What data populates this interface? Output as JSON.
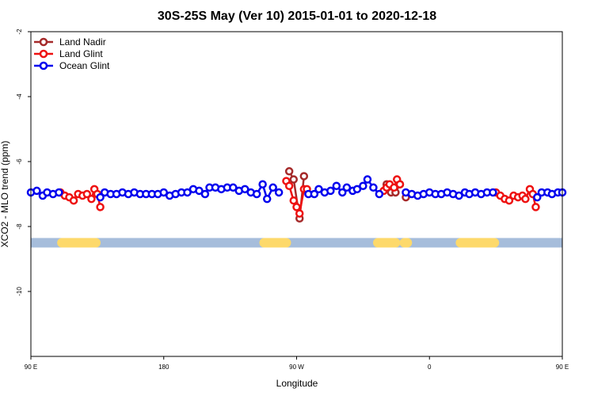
{
  "chart_data": {
    "type": "line",
    "title": "30S-25S May (Ver 10)   2015-01-01 to 2020-12-18",
    "xlabel": "Longitude",
    "ylabel": "XCO2 - MLO trend (ppm)",
    "xlim": [
      90,
      450
    ],
    "ylim": [
      -12,
      -2
    ],
    "x_ticks": [
      {
        "value": 90,
        "label": "90 E"
      },
      {
        "value": 180,
        "label": "180"
      },
      {
        "value": 270,
        "label": "90 W"
      },
      {
        "value": 360,
        "label": "0"
      },
      {
        "value": 450,
        "label": "90 E"
      },
      {
        "value": 540,
        "label": "180"
      }
    ],
    "y_ticks": [
      {
        "value": -2,
        "label": "-2"
      },
      {
        "value": -4,
        "label": "-4"
      },
      {
        "value": -6,
        "label": "-6"
      },
      {
        "value": -8,
        "label": "-8"
      },
      {
        "value": -10,
        "label": "-10"
      }
    ],
    "legend_position": "top-left",
    "land_ocean_bar": {
      "y": -8.5,
      "ocean_color": "#a6bddb",
      "land_color": "#fdd96b",
      "land_segments": [
        [
          111,
          134
        ],
        [
          248,
          263
        ],
        [
          325,
          337
        ],
        [
          343,
          345
        ],
        [
          381,
          404
        ]
      ]
    },
    "series": [
      {
        "name": "Land Nadir",
        "color": "#a52a2a",
        "segments": [
          [
            [
              265,
              -6.3
            ],
            [
              268,
              -6.55
            ],
            [
              272,
              -7.75
            ],
            [
              275,
              -6.45
            ]
          ],
          [
            [
              331,
              -6.7
            ],
            [
              334,
              -6.95
            ],
            [
              337,
              -6.95
            ],
            [
              340,
              -6.7
            ]
          ],
          [
            [
              344,
              -7.1
            ]
          ]
        ]
      },
      {
        "name": "Land Glint",
        "color": "#ee1111",
        "segments": [
          [
            [
              110,
              -6.95
            ],
            [
              113,
              -7.05
            ],
            [
              116,
              -7.1
            ],
            [
              119,
              -7.2
            ],
            [
              122,
              -7.0
            ],
            [
              125,
              -7.05
            ],
            [
              128,
              -7.0
            ],
            [
              131,
              -7.15
            ],
            [
              133,
              -6.85
            ],
            [
              135,
              -7.0
            ],
            [
              137,
              -7.4
            ]
          ],
          [
            [
              263,
              -6.6
            ],
            [
              265,
              -6.75
            ],
            [
              268,
              -7.2
            ],
            [
              270,
              -7.4
            ],
            [
              272,
              -7.6
            ],
            [
              275,
              -6.85
            ],
            [
              277,
              -6.85
            ]
          ],
          [
            [
              329,
              -6.9
            ],
            [
              331,
              -6.8
            ],
            [
              333,
              -6.7
            ],
            [
              336,
              -6.8
            ],
            [
              338,
              -6.55
            ],
            [
              340,
              -6.7
            ]
          ],
          [
            [
              405,
              -6.95
            ],
            [
              408,
              -7.05
            ],
            [
              411,
              -7.15
            ],
            [
              414,
              -7.2
            ],
            [
              417,
              -7.05
            ],
            [
              420,
              -7.1
            ],
            [
              423,
              -7.05
            ],
            [
              425,
              -7.15
            ],
            [
              428,
              -6.85
            ],
            [
              430,
              -7.0
            ],
            [
              432,
              -7.4
            ]
          ]
        ]
      },
      {
        "name": "Ocean Glint",
        "color": "#0000ee",
        "segments": [
          [
            [
              90,
              -6.95
            ],
            [
              94,
              -6.9
            ],
            [
              98,
              -7.05
            ],
            [
              101,
              -6.95
            ],
            [
              105,
              -7.0
            ],
            [
              109,
              -6.95
            ]
          ],
          [
            [
              137,
              -7.1
            ],
            [
              140,
              -6.95
            ],
            [
              144,
              -7.0
            ],
            [
              148,
              -7.0
            ],
            [
              152,
              -6.95
            ],
            [
              156,
              -7.0
            ],
            [
              160,
              -6.95
            ],
            [
              164,
              -7.0
            ],
            [
              168,
              -7.0
            ],
            [
              172,
              -7.0
            ],
            [
              176,
              -7.0
            ],
            [
              180,
              -6.95
            ],
            [
              184,
              -7.05
            ],
            [
              188,
              -7.0
            ],
            [
              192,
              -6.95
            ],
            [
              196,
              -6.95
            ],
            [
              200,
              -6.85
            ],
            [
              204,
              -6.9
            ],
            [
              208,
              -7.0
            ],
            [
              211,
              -6.8
            ],
            [
              215,
              -6.8
            ],
            [
              219,
              -6.85
            ],
            [
              223,
              -6.8
            ],
            [
              227,
              -6.8
            ],
            [
              231,
              -6.9
            ],
            [
              235,
              -6.85
            ],
            [
              239,
              -6.95
            ],
            [
              243,
              -7.0
            ],
            [
              247,
              -6.7
            ],
            [
              250,
              -7.15
            ],
            [
              254,
              -6.8
            ],
            [
              258,
              -6.95
            ]
          ],
          [
            [
              278,
              -7.0
            ],
            [
              282,
              -7.0
            ],
            [
              285,
              -6.85
            ],
            [
              289,
              -6.95
            ],
            [
              293,
              -6.9
            ],
            [
              297,
              -6.75
            ],
            [
              301,
              -6.95
            ],
            [
              304,
              -6.8
            ],
            [
              308,
              -6.9
            ],
            [
              311,
              -6.85
            ],
            [
              315,
              -6.75
            ],
            [
              318,
              -6.55
            ],
            [
              322,
              -6.8
            ],
            [
              326,
              -7.0
            ]
          ],
          [
            [
              344,
              -6.95
            ],
            [
              348,
              -7.0
            ],
            [
              352,
              -7.05
            ],
            [
              356,
              -7.0
            ],
            [
              360,
              -6.95
            ],
            [
              364,
              -7.0
            ],
            [
              368,
              -7.0
            ],
            [
              372,
              -6.95
            ],
            [
              376,
              -7.0
            ],
            [
              380,
              -7.05
            ],
            [
              384,
              -6.95
            ],
            [
              387,
              -7.0
            ],
            [
              391,
              -6.95
            ],
            [
              395,
              -7.0
            ],
            [
              399,
              -6.95
            ],
            [
              403,
              -6.95
            ]
          ],
          [
            [
              433,
              -7.1
            ],
            [
              436,
              -6.95
            ],
            [
              440,
              -6.95
            ],
            [
              443,
              -7.0
            ],
            [
              447,
              -6.95
            ],
            [
              450,
              -6.95
            ]
          ]
        ]
      }
    ]
  }
}
